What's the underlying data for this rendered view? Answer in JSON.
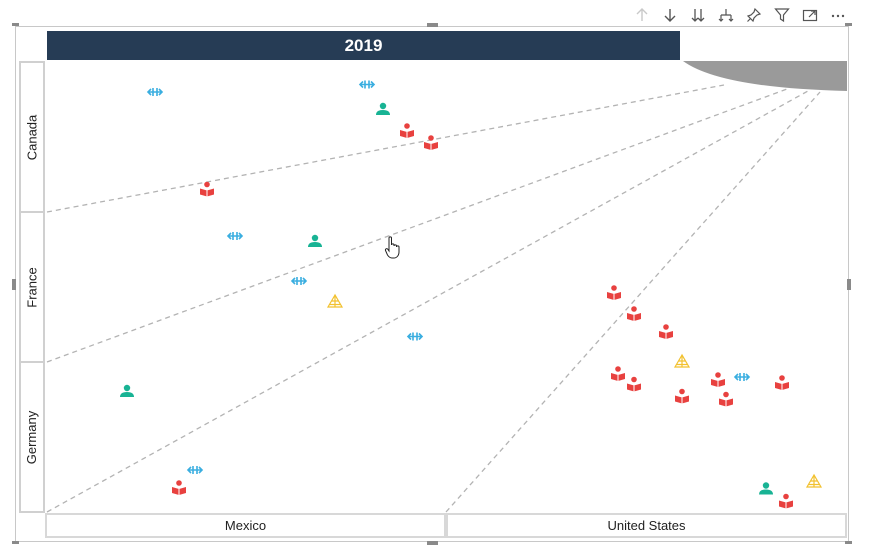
{
  "toolbar": {
    "icons": [
      "arrow-up-icon",
      "arrow-down-icon",
      "double-arrow-down-icon",
      "expand-hierarchy-icon",
      "pin-icon",
      "filter-icon",
      "focus-mode-icon",
      "more-options-icon"
    ]
  },
  "chart_data": {
    "type": "scatter",
    "title": "2019",
    "rows": [
      "Canada",
      "France",
      "Germany"
    ],
    "columns": [
      "Mexico",
      "United States"
    ],
    "legend": "none",
    "grid": false,
    "colors": {
      "red": "#e8413f",
      "teal": "#18b394",
      "blue": "#3aaee0",
      "yellow": "#f2c12e",
      "banner": "#263c55",
      "dash": "#b3b3b3"
    },
    "points": [
      {
        "icon": "arrows",
        "color": "blue",
        "x": 0.27,
        "y": 0.8
      },
      {
        "icon": "arrows",
        "color": "blue",
        "x": 0.8,
        "y": 0.85
      },
      {
        "icon": "person",
        "color": "teal",
        "x": 0.84,
        "y": 0.68
      },
      {
        "icon": "reader",
        "color": "red",
        "x": 0.9,
        "y": 0.54
      },
      {
        "icon": "reader",
        "color": "red",
        "x": 0.96,
        "y": 0.46
      },
      {
        "icon": "reader",
        "color": "red",
        "x": 0.4,
        "y": 0.15
      },
      {
        "icon": "arrows",
        "color": "blue",
        "x": 0.47,
        "y": 0.84
      },
      {
        "icon": "person",
        "color": "teal",
        "x": 0.67,
        "y": 0.8
      },
      {
        "icon": "arrows",
        "color": "blue",
        "x": 0.63,
        "y": 0.54
      },
      {
        "icon": "pyramid",
        "color": "yellow",
        "x": 0.72,
        "y": 0.4
      },
      {
        "icon": "arrows",
        "color": "blue",
        "x": 0.92,
        "y": 0.17
      },
      {
        "icon": "person",
        "color": "teal",
        "x": 0.2,
        "y": 0.4
      },
      {
        "icon": "reader",
        "color": "red",
        "x": 0.33,
        "y": 0.08
      },
      {
        "icon": "reader",
        "color": "red",
        "x": 0.42,
        "y": 0.73
      },
      {
        "icon": "reader",
        "color": "red",
        "x": 0.47,
        "y": 0.66
      },
      {
        "icon": "reader",
        "color": "red",
        "x": 0.55,
        "y": 0.6
      },
      {
        "icon": "pyramid",
        "color": "yellow",
        "x": 0.59,
        "y": 0.5
      },
      {
        "icon": "reader",
        "color": "red",
        "x": 0.68,
        "y": 0.44
      },
      {
        "icon": "arrows",
        "color": "blue",
        "x": 0.74,
        "y": 0.45
      },
      {
        "icon": "reader",
        "color": "red",
        "x": 0.84,
        "y": 0.43
      },
      {
        "icon": "pyramid",
        "color": "yellow",
        "x": 0.92,
        "y": 0.1
      },
      {
        "icon": "arrows",
        "color": "blue",
        "x": 0.37,
        "y": 0.28
      },
      {
        "icon": "reader",
        "color": "red",
        "x": 0.43,
        "y": 0.92
      },
      {
        "icon": "reader",
        "color": "red",
        "x": 0.47,
        "y": 0.85
      },
      {
        "icon": "reader",
        "color": "red",
        "x": 0.59,
        "y": 0.77
      },
      {
        "icon": "reader",
        "color": "red",
        "x": 0.7,
        "y": 0.75
      },
      {
        "icon": "person",
        "color": "teal",
        "x": 0.8,
        "y": 0.15
      },
      {
        "icon": "reader",
        "color": "red",
        "x": 0.85,
        "y": 0.07
      }
    ],
    "cells": [
      [
        3,
        0
      ],
      [
        3,
        0
      ],
      [
        3,
        0
      ],
      [
        3,
        0
      ],
      [
        3,
        0
      ],
      [
        3,
        0
      ],
      [
        2,
        0
      ],
      [
        2,
        0
      ],
      [
        2,
        0
      ],
      [
        2,
        0
      ],
      [
        2,
        0
      ],
      [
        1,
        0
      ],
      [
        1,
        0
      ],
      [
        1,
        1
      ],
      [
        1,
        1
      ],
      [
        1,
        1
      ],
      [
        1,
        1
      ],
      [
        1,
        1
      ],
      [
        1,
        1
      ],
      [
        1,
        1
      ],
      [
        1,
        1
      ],
      [
        0,
        0
      ],
      [
        0,
        1
      ],
      [
        0,
        1
      ],
      [
        0,
        1
      ],
      [
        0,
        1
      ],
      [
        0,
        1
      ],
      [
        0,
        1
      ]
    ]
  }
}
